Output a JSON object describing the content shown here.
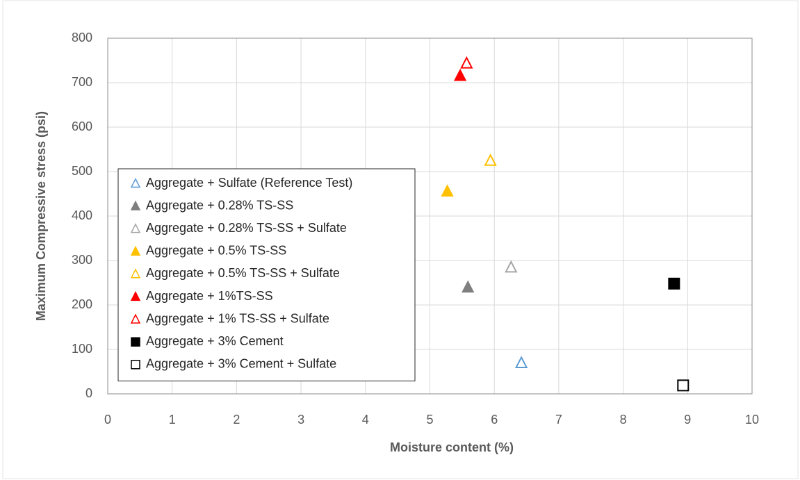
{
  "chart_data": {
    "type": "scatter",
    "x_label": "Moisture content (%)",
    "y_label": "Maximum Compressive stress (psi)",
    "xlim": [
      0,
      10
    ],
    "xticks": [
      0,
      1,
      2,
      3,
      4,
      5,
      6,
      7,
      8,
      9,
      10
    ],
    "ylim": [
      0,
      800
    ],
    "yticks": [
      0,
      100,
      200,
      300,
      400,
      500,
      600,
      700,
      800
    ],
    "grid": true,
    "legend": "lower left",
    "series": [
      {
        "name": "Aggregate + Sulfate (Reference Test)",
        "color": "#5b9bd5",
        "marker": "triangle",
        "filled": false,
        "x": [
          6.42
        ],
        "y": [
          70
        ]
      },
      {
        "name": "Aggregate + 0.28% TS-SS",
        "color": "#7f7f7f",
        "marker": "triangle",
        "filled": true,
        "x": [
          5.59
        ],
        "y": [
          240
        ]
      },
      {
        "name": "Aggregate + 0.28% TS-SS + Sulfate",
        "color": "#a5a5a5",
        "marker": "triangle",
        "filled": false,
        "x": [
          6.26
        ],
        "y": [
          285
        ]
      },
      {
        "name": "Aggregate + 0.5% TS-SS",
        "color": "#ffc000",
        "marker": "triangle",
        "filled": true,
        "x": [
          5.27
        ],
        "y": [
          456
        ]
      },
      {
        "name": "Aggregate + 0.5% TS-SS + Sulfate",
        "color": "#ffc000",
        "marker": "triangle",
        "filled": false,
        "x": [
          5.94
        ],
        "y": [
          525
        ]
      },
      {
        "name": "Aggregate + 1%TS-SS",
        "color": "#ff0000",
        "marker": "triangle",
        "filled": true,
        "x": [
          5.47
        ],
        "y": [
          716
        ]
      },
      {
        "name": "Aggregate + 1% TS-SS + Sulfate",
        "color": "#ff0000",
        "marker": "triangle",
        "filled": false,
        "x": [
          5.57
        ],
        "y": [
          744
        ]
      },
      {
        "name": "Aggregate + 3% Cement",
        "color": "#000000",
        "marker": "square",
        "filled": true,
        "x": [
          8.79
        ],
        "y": [
          248
        ]
      },
      {
        "name": "Aggregate + 3% Cement + Sulfate",
        "color": "#000000",
        "marker": "square",
        "filled": false,
        "x": [
          8.93
        ],
        "y": [
          19
        ]
      }
    ]
  }
}
